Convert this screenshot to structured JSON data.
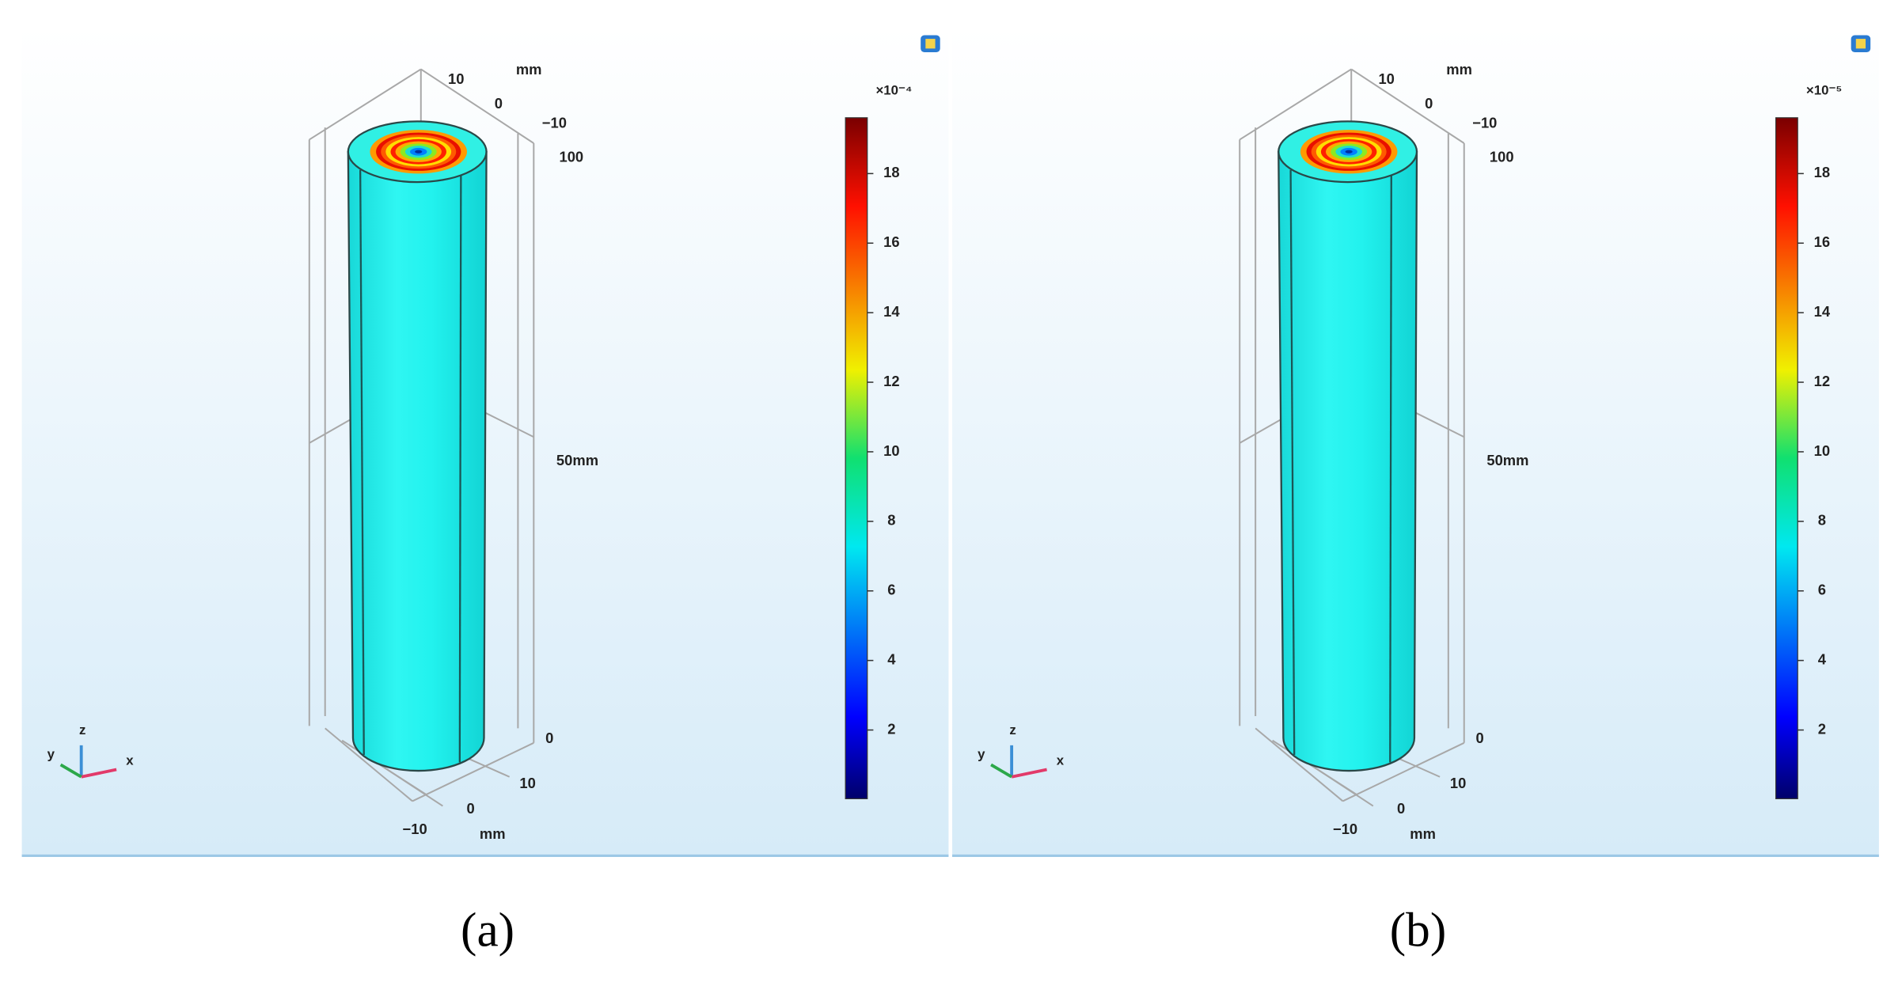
{
  "panels": [
    {
      "label": "(a)",
      "colorbar": {
        "multiplier": "×10⁻⁴",
        "ticks": [
          2,
          4,
          6,
          8,
          10,
          12,
          14,
          16,
          18
        ]
      },
      "axes": {
        "top_unit": "mm",
        "top_ticks": [
          "10",
          "0",
          "−10"
        ],
        "z_top": "100",
        "z_mid": "50mm",
        "z_bottom": "0",
        "bottom_ticks": [
          "10",
          "0",
          "−10"
        ],
        "bottom_unit": "mm"
      },
      "triad": [
        "z",
        "y",
        "x"
      ]
    },
    {
      "label": "(b)",
      "colorbar": {
        "multiplier": "×10⁻⁵",
        "ticks": [
          2,
          4,
          6,
          8,
          10,
          12,
          14,
          16,
          18
        ]
      },
      "axes": {
        "top_unit": "mm",
        "top_ticks": [
          "10",
          "0",
          "−10"
        ],
        "z_top": "100",
        "z_mid": "50mm",
        "z_bottom": "0",
        "bottom_ticks": [
          "10",
          "0",
          "−10"
        ],
        "bottom_unit": "mm"
      },
      "triad": [
        "z",
        "y",
        "x"
      ]
    }
  ]
}
